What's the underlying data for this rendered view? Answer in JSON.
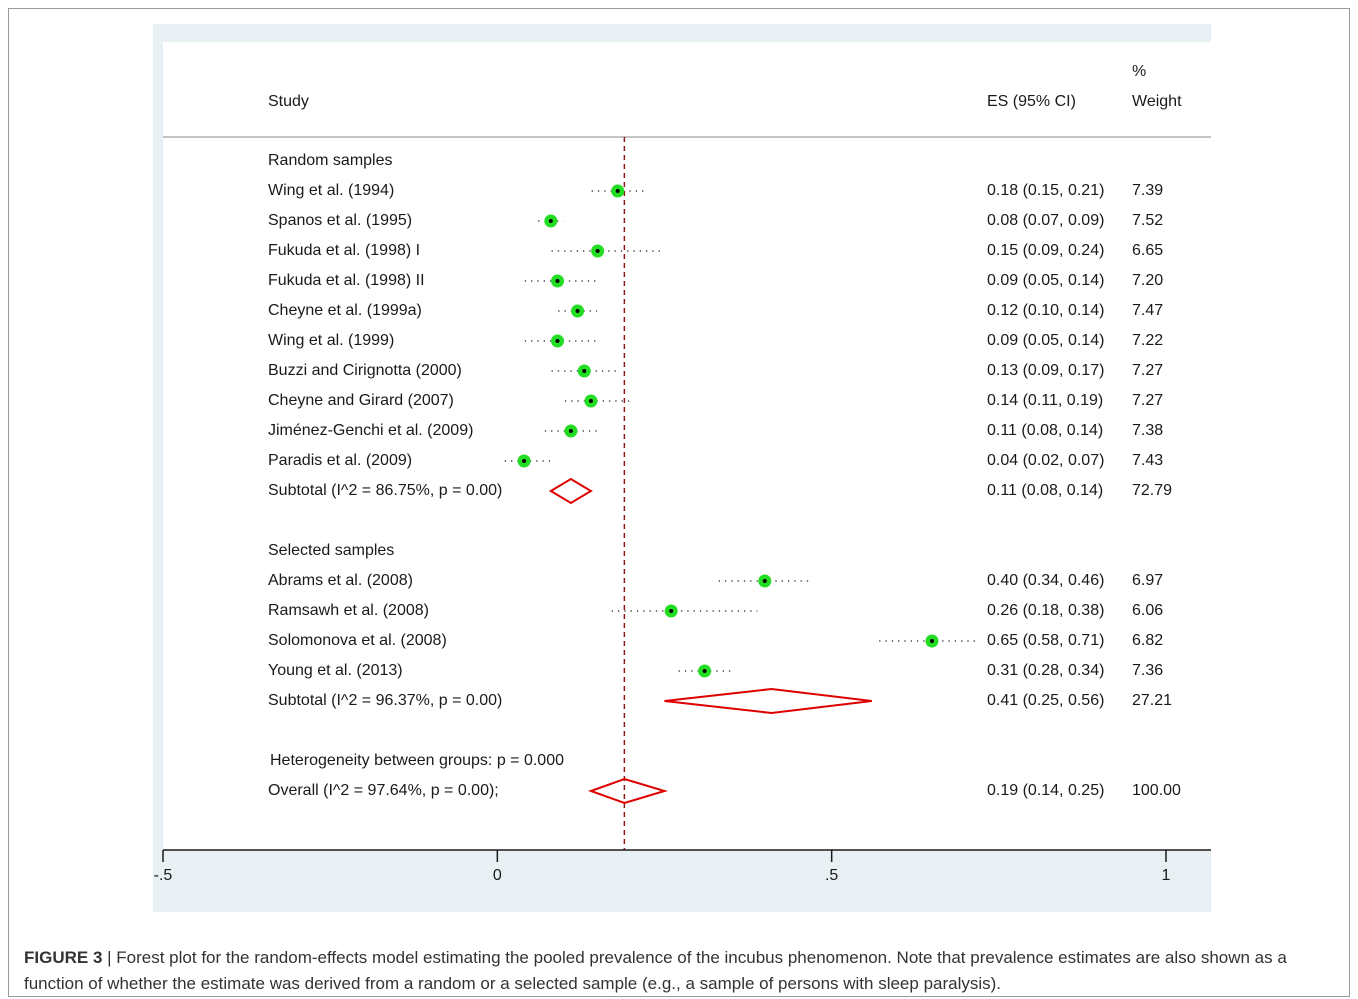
{
  "figure": {
    "label": "FIGURE 3",
    "separator": " | ",
    "caption": "Forest plot for the random-effects model estimating the pooled prevalence of the incubus phenomenon. Note that prevalence estimates are also shown as a function of whether the estimate was derived from a random or a selected sample (e.g., a sample of persons with sleep paralysis)."
  },
  "header": {
    "study": "Study",
    "es": "ES (95% CI)",
    "weight_line1": "%",
    "weight_line2": "Weight"
  },
  "colors": {
    "marker": "#22dd22",
    "diamond": "#dd0000",
    "reference_line": "#8b1a1a",
    "background": "#e9f0f3"
  },
  "chart_data": {
    "type": "forest",
    "xlim": [
      -0.5,
      1
    ],
    "xticks": [
      "-.5",
      "0",
      ".5",
      "1"
    ],
    "xtick_values": [
      -0.5,
      0,
      0.5,
      1
    ],
    "reference_line": 0.19,
    "groups": [
      {
        "title": "Random samples",
        "studies": [
          {
            "name": "Wing et al. (1994)",
            "es": 0.18,
            "lo": 0.15,
            "hi": 0.21,
            "es_text": "0.18 (0.15, 0.21)",
            "weight": "7.39"
          },
          {
            "name": "Spanos et al. (1995)",
            "es": 0.08,
            "lo": 0.07,
            "hi": 0.09,
            "es_text": "0.08 (0.07, 0.09)",
            "weight": "7.52"
          },
          {
            "name": "Fukuda et al. (1998) I",
            "es": 0.15,
            "lo": 0.09,
            "hi": 0.24,
            "es_text": "0.15 (0.09, 0.24)",
            "weight": "6.65"
          },
          {
            "name": "Fukuda et al. (1998) II",
            "es": 0.09,
            "lo": 0.05,
            "hi": 0.14,
            "es_text": "0.09 (0.05, 0.14)",
            "weight": "7.20"
          },
          {
            "name": "Cheyne et al. (1999a)",
            "es": 0.12,
            "lo": 0.1,
            "hi": 0.14,
            "es_text": "0.12 (0.10, 0.14)",
            "weight": "7.47"
          },
          {
            "name": "Wing et al. (1999)",
            "es": 0.09,
            "lo": 0.05,
            "hi": 0.14,
            "es_text": "0.09 (0.05, 0.14)",
            "weight": "7.22"
          },
          {
            "name": "Buzzi and Cirignotta (2000)",
            "es": 0.13,
            "lo": 0.09,
            "hi": 0.17,
            "es_text": "0.13 (0.09, 0.17)",
            "weight": "7.27"
          },
          {
            "name": "Cheyne and Girard (2007)",
            "es": 0.14,
            "lo": 0.11,
            "hi": 0.19,
            "es_text": "0.14 (0.11, 0.19)",
            "weight": "7.27"
          },
          {
            "name": "Jiménez-Genchi et al. (2009)",
            "es": 0.11,
            "lo": 0.08,
            "hi": 0.14,
            "es_text": "0.11 (0.08, 0.14)",
            "weight": "7.38"
          },
          {
            "name": "Paradis et al. (2009)",
            "es": 0.04,
            "lo": 0.02,
            "hi": 0.07,
            "es_text": "0.04 (0.02, 0.07)",
            "weight": "7.43"
          }
        ],
        "subtotal": {
          "label": "Subtotal  (I^2 = 86.75%, p = 0.00)",
          "es": 0.11,
          "lo": 0.08,
          "hi": 0.14,
          "es_text": "0.11 (0.08, 0.14)",
          "weight": "72.79"
        }
      },
      {
        "title": "Selected samples",
        "studies": [
          {
            "name": "Abrams et al. (2008)",
            "es": 0.4,
            "lo": 0.34,
            "hi": 0.46,
            "es_text": "0.40 (0.34, 0.46)",
            "weight": "6.97"
          },
          {
            "name": "Ramsawh et al. (2008)",
            "es": 0.26,
            "lo": 0.18,
            "hi": 0.38,
            "es_text": "0.26 (0.18, 0.38)",
            "weight": "6.06"
          },
          {
            "name": "Solomonova et al. (2008)",
            "es": 0.65,
            "lo": 0.58,
            "hi": 0.71,
            "es_text": "0.65 (0.58, 0.71)",
            "weight": "6.82"
          },
          {
            "name": "Young et al. (2013)",
            "es": 0.31,
            "lo": 0.28,
            "hi": 0.34,
            "es_text": "0.31 (0.28, 0.34)",
            "weight": "7.36"
          }
        ],
        "subtotal": {
          "label": "Subtotal  (I^2 = 96.37%, p = 0.00)",
          "es": 0.41,
          "lo": 0.25,
          "hi": 0.56,
          "es_text": "0.41 (0.25, 0.56)",
          "weight": "27.21"
        }
      }
    ],
    "heterogeneity": "Heterogeneity between groups: p = 0.000",
    "overall": {
      "label": "Overall  (I^2 = 97.64%, p = 0.00);",
      "es": 0.19,
      "lo": 0.14,
      "hi": 0.25,
      "es_text": "0.19 (0.14, 0.25)",
      "weight": "100.00"
    }
  }
}
